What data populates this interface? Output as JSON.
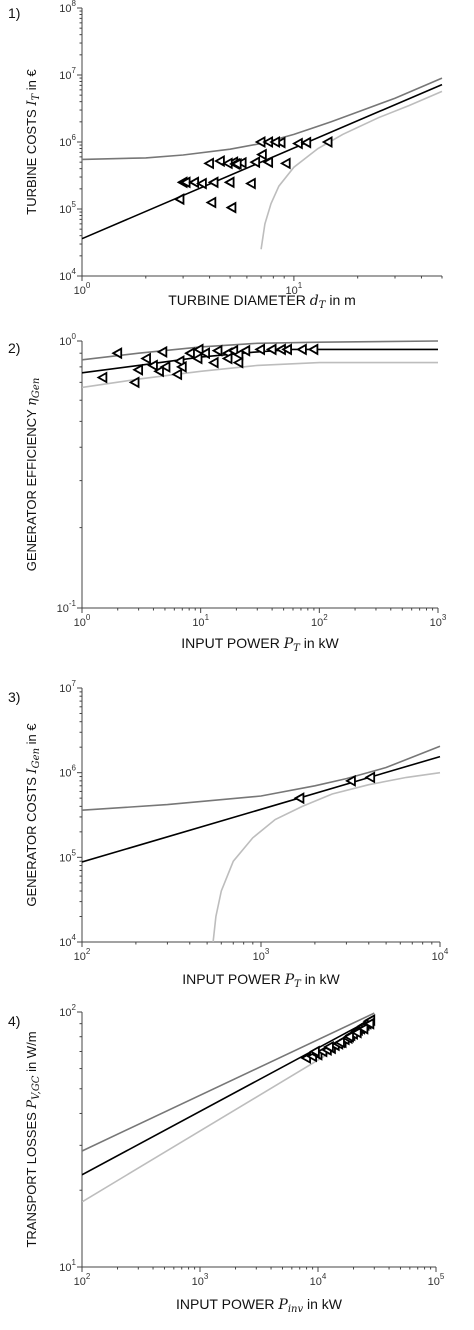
{
  "chart_data": [
    {
      "type": "line",
      "panel_label": "1)",
      "xlabel": "TURBINE DIAMETER d_T in m",
      "xlabel_main": "TURBINE DIAMETER ",
      "xlabel_var": "d",
      "xlabel_sub": "T",
      "xlabel_unit": " in m",
      "ylabel": "TURBINE COSTS I_T in €",
      "ylabel_main": "TURBINE COSTS ",
      "ylabel_var": "I",
      "ylabel_sub": "T",
      "ylabel_unit": " in €",
      "xscale": "log",
      "yscale": "log",
      "xlim": [
        1,
        50
      ],
      "ylim": [
        10000,
        100000000
      ],
      "x_ticks": [
        {
          "base": "10",
          "exp": "0",
          "value": 1
        },
        {
          "base": "10",
          "exp": "1",
          "value": 10
        }
      ],
      "y_ticks": [
        {
          "base": "10",
          "exp": "4",
          "value": 10000
        },
        {
          "base": "10",
          "exp": "5",
          "value": 100000
        },
        {
          "base": "10",
          "exp": "6",
          "value": 1000000
        },
        {
          "base": "10",
          "exp": "7",
          "value": 10000000
        },
        {
          "base": "10",
          "exp": "8",
          "value": 100000000
        }
      ],
      "grid": false,
      "series": [
        {
          "role": "fit",
          "color": "#000000",
          "x": [
            1,
            50
          ],
          "y": [
            36000,
            7200000
          ]
        },
        {
          "role": "upper-bound",
          "color": "#777777",
          "x": [
            1,
            2,
            3,
            5,
            7,
            10,
            15,
            20,
            30,
            50
          ],
          "y": [
            550000,
            580000,
            640000,
            780000,
            950000,
            1300000,
            2000000,
            2800000,
            4500000,
            9000000
          ]
        },
        {
          "role": "lower-bound",
          "color": "#bdbdbd",
          "x": [
            7,
            7.3,
            7.8,
            8.5,
            10,
            13,
            17,
            25,
            35,
            50
          ],
          "y": [
            25000,
            60000,
            120000,
            220000,
            420000,
            800000,
            1300000,
            2300000,
            3500000,
            5700000
          ]
        }
      ],
      "markers": {
        "x": [
          3,
          3.1,
          3.4,
          3.7,
          4.2,
          4.5,
          5.2,
          2.9,
          4.1,
          5.0,
          4.9,
          5.3,
          5.7,
          6.3,
          7.0,
          7.6,
          8.7,
          10.5,
          6.6,
          7.1,
          7.6,
          8.2,
          9.2,
          11.5,
          14.5,
          5.1,
          4.0,
          5.4
        ],
        "y": [
          250000,
          250000,
          250000,
          240000,
          250000,
          520000,
          500000,
          140000,
          125000,
          250000,
          480000,
          470000,
          490000,
          240000,
          1000000,
          1000000,
          980000,
          950000,
          500000,
          650000,
          500000,
          1000000,
          480000,
          980000,
          1000000,
          105000,
          480000,
          470000
        ]
      }
    },
    {
      "type": "line",
      "panel_label": "2)",
      "xlabel": "INPUT POWER P_T in kW",
      "xlabel_main": "INPUT POWER ",
      "xlabel_var": "P",
      "xlabel_sub": "T",
      "xlabel_unit": " in kW",
      "ylabel": "GENERATOR EFFICIENCY η_Gen",
      "ylabel_main": "GENERATOR EFFICIENCY ",
      "ylabel_var": "η",
      "ylabel_sub": "Gen",
      "ylabel_unit": "",
      "xscale": "log",
      "yscale": "log",
      "xlim": [
        1,
        1000
      ],
      "ylim": [
        0.1,
        1
      ],
      "x_ticks": [
        {
          "base": "10",
          "exp": "0",
          "value": 1
        },
        {
          "base": "10",
          "exp": "1",
          "value": 10
        },
        {
          "base": "10",
          "exp": "2",
          "value": 100
        },
        {
          "base": "10",
          "exp": "3",
          "value": 1000
        }
      ],
      "y_ticks": [
        {
          "base": "10",
          "exp": "-1",
          "value": 0.1
        },
        {
          "base": "10",
          "exp": "0",
          "value": 1
        }
      ],
      "grid": false,
      "series": [
        {
          "role": "fit",
          "color": "#000000",
          "x": [
            1,
            3,
            10,
            30,
            60,
            100,
            1000
          ],
          "y": [
            0.76,
            0.81,
            0.87,
            0.91,
            0.93,
            0.93,
            0.93
          ]
        },
        {
          "role": "upper-bound",
          "color": "#777777",
          "x": [
            1,
            3,
            10,
            30,
            100,
            1000
          ],
          "y": [
            0.85,
            0.9,
            0.95,
            0.98,
            0.99,
            1.0
          ]
        },
        {
          "role": "lower-bound",
          "color": "#bdbdbd",
          "x": [
            1,
            3,
            10,
            30,
            100,
            1000
          ],
          "y": [
            0.67,
            0.72,
            0.77,
            0.81,
            0.83,
            0.83
          ]
        }
      ],
      "markers": {
        "x": [
          2,
          1.5,
          2.8,
          3.5,
          4.8,
          5.1,
          6.7,
          8.2,
          9.7,
          11,
          14,
          17,
          19,
          21,
          24,
          32,
          40,
          48,
          54,
          72,
          90,
          3.0,
          4.0,
          6.4,
          9.5,
          13,
          17,
          21,
          7.0,
          4.5
        ],
        "y": [
          0.9,
          0.73,
          0.7,
          0.86,
          0.91,
          0.8,
          0.84,
          0.9,
          0.93,
          0.9,
          0.92,
          0.9,
          0.92,
          0.89,
          0.92,
          0.93,
          0.93,
          0.93,
          0.93,
          0.93,
          0.93,
          0.78,
          0.81,
          0.75,
          0.86,
          0.83,
          0.86,
          0.83,
          0.8,
          0.77
        ]
      }
    },
    {
      "type": "line",
      "panel_label": "3)",
      "xlabel": "INPUT POWER P_T in kW",
      "xlabel_main": "INPUT POWER ",
      "xlabel_var": "P",
      "xlabel_sub": "T",
      "xlabel_unit": " in kW",
      "ylabel": "GENERATOR COSTS I_Gen in €",
      "ylabel_main": "GENERATOR COSTS ",
      "ylabel_var": "I",
      "ylabel_sub": "Gen",
      "ylabel_unit": " in €",
      "xscale": "log",
      "yscale": "log",
      "xlim": [
        100,
        10000
      ],
      "ylim": [
        10000,
        10000000
      ],
      "x_ticks": [
        {
          "base": "10",
          "exp": "2",
          "value": 100
        },
        {
          "base": "10",
          "exp": "3",
          "value": 1000
        },
        {
          "base": "10",
          "exp": "4",
          "value": 10000
        }
      ],
      "y_ticks": [
        {
          "base": "10",
          "exp": "4",
          "value": 10000
        },
        {
          "base": "10",
          "exp": "5",
          "value": 100000
        },
        {
          "base": "10",
          "exp": "6",
          "value": 1000000
        },
        {
          "base": "10",
          "exp": "7",
          "value": 10000000
        }
      ],
      "grid": false,
      "series": [
        {
          "role": "fit",
          "color": "#000000",
          "x": [
            100,
            10000
          ],
          "y": [
            88000,
            1550000
          ]
        },
        {
          "role": "upper-bound",
          "color": "#777777",
          "x": [
            100,
            300,
            1000,
            2000,
            3000,
            5000,
            10000
          ],
          "y": [
            360000,
            420000,
            530000,
            700000,
            850000,
            1150000,
            2050000
          ]
        },
        {
          "role": "lower-bound",
          "color": "#bdbdbd",
          "x": [
            540,
            560,
            600,
            700,
            900,
            1200,
            1700,
            2500,
            4000,
            6500,
            10000
          ],
          "y": [
            10000,
            20000,
            40000,
            90000,
            170000,
            280000,
            400000,
            560000,
            720000,
            880000,
            1000000
          ]
        }
      ],
      "markers": {
        "x": [
          1650,
          3200,
          4100
        ],
        "y": [
          500000,
          800000,
          880000
        ]
      }
    },
    {
      "type": "line",
      "panel_label": "4)",
      "xlabel": "INPUT POWER P_inv in kW",
      "xlabel_main": "INPUT POWER ",
      "xlabel_var": "P",
      "xlabel_sub": "inv",
      "xlabel_unit": " in kW",
      "ylabel": "TRANSPORT LOSSES P_V,GC in W/m",
      "ylabel_main": "TRANSPORT LOSSES ",
      "ylabel_var": "P",
      "ylabel_sub": "V,GC",
      "ylabel_unit": " in W/m",
      "xscale": "log",
      "yscale": "log",
      "xlim": [
        100,
        100000
      ],
      "ylim": [
        10,
        100
      ],
      "x_ticks": [
        {
          "base": "10",
          "exp": "2",
          "value": 100
        },
        {
          "base": "10",
          "exp": "3",
          "value": 1000
        },
        {
          "base": "10",
          "exp": "4",
          "value": 10000
        },
        {
          "base": "10",
          "exp": "5",
          "value": 100000
        }
      ],
      "y_ticks": [
        {
          "base": "10",
          "exp": "1",
          "value": 10
        },
        {
          "base": "10",
          "exp": "2",
          "value": 100
        }
      ],
      "grid": false,
      "series": [
        {
          "role": "fit",
          "color": "#000000",
          "x": [
            100,
            30000
          ],
          "y": [
            23,
            95
          ]
        },
        {
          "role": "upper-bound",
          "color": "#777777",
          "x": [
            100,
            30000
          ],
          "y": [
            28.5,
            99
          ]
        },
        {
          "role": "lower-bound",
          "color": "#bdbdbd",
          "x": [
            100,
            30000
          ],
          "y": [
            18,
            88
          ]
        }
      ],
      "markers": {
        "x": [
          8000,
          9000,
          10000,
          11000,
          12000,
          13000,
          14000,
          15000,
          16000,
          17000,
          18000,
          19000,
          20000,
          21000,
          22000,
          23000,
          24000,
          25000,
          26000,
          27000,
          28000,
          9500,
          12500,
          15500,
          18500,
          21500,
          24500,
          27500
        ],
        "y": [
          66,
          67,
          68,
          70,
          71,
          72,
          74,
          75,
          76,
          78,
          79,
          81,
          82,
          84,
          85,
          86,
          88,
          89,
          90,
          92,
          93,
          70,
          73,
          76,
          80,
          83,
          86,
          90
        ]
      }
    }
  ]
}
